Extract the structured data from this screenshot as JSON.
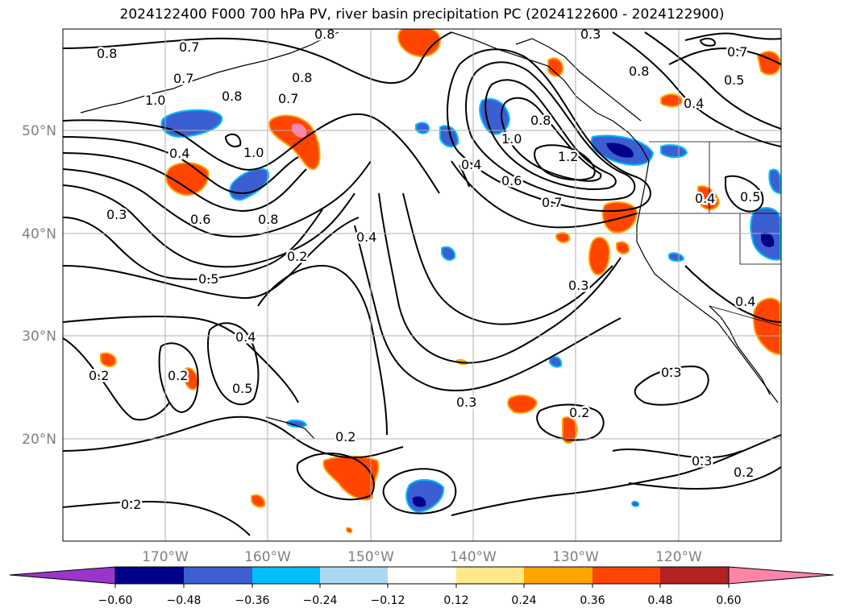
{
  "title": "2024122400 F000 700 hPa PV, river basin precipitation PC (2024122600 - 2024122900)",
  "map": {
    "lat_labels": [
      "50°N",
      "40°N",
      "30°N",
      "20°N"
    ],
    "lon_labels": [
      "170°W",
      "160°W",
      "150°W",
      "140°W",
      "130°W",
      "120°W"
    ],
    "axis_label_color": "#808080",
    "grid_color": "#b0b0b0",
    "contour_labels": [
      "0.8",
      "0.7",
      "0.7",
      "0.8",
      "0.8",
      "1.0",
      "0.8",
      "0.7",
      "1.0",
      "0.8",
      "0.4",
      "0.3",
      "0.6",
      "0.8",
      "0.5",
      "0.2",
      "0.4",
      "0.4",
      "0.5",
      "0.2",
      "0.2",
      "0.4",
      "0.6",
      "1.0",
      "0.8",
      "1.2",
      "0.7",
      "0.3",
      "0.2",
      "0.3",
      "0.2",
      "0.3",
      "0.7",
      "0.4",
      "0.5",
      "0.4",
      "0.5",
      "0.4",
      "0.3",
      "0.2",
      "0.2",
      "0.3"
    ]
  },
  "colorbar": {
    "tick_labels": [
      "−0.60",
      "−0.48",
      "−0.36",
      "−0.24",
      "−0.12",
      "0.12",
      "0.24",
      "0.36",
      "0.48",
      "0.60"
    ],
    "colors": [
      "#9a35cc",
      "#00008b",
      "#3b5fd1",
      "#00bfff",
      "#add8f5",
      "#ffffff",
      "#fde98a",
      "#ffa500",
      "#ff4500",
      "#b22222",
      "#ff85a8"
    ]
  }
}
